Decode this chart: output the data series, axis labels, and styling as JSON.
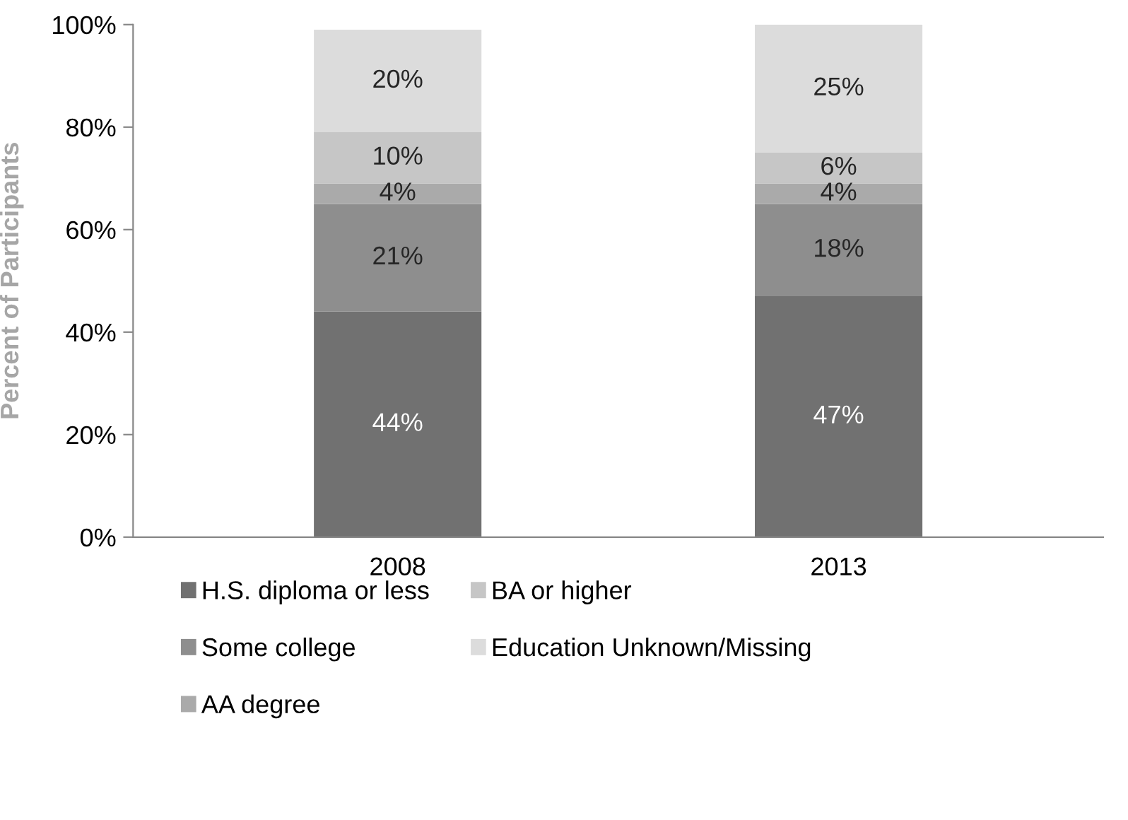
{
  "chart_data": {
    "type": "bar",
    "stacked": true,
    "ylabel": "Percent of Participants",
    "categories": [
      "2008",
      "2013"
    ],
    "series": [
      {
        "name": "H.S. diploma or less",
        "color": "#717171",
        "values": [
          44,
          47
        ]
      },
      {
        "name": "Some college",
        "color": "#8e8e8e",
        "values": [
          21,
          18
        ]
      },
      {
        "name": "AA degree",
        "color": "#aaaaaa",
        "values": [
          4,
          4
        ]
      },
      {
        "name": "BA or higher",
        "color": "#c6c6c6",
        "values": [
          10,
          6
        ]
      },
      {
        "name": "Education Unknown/Missing",
        "color": "#dcdcdc",
        "values": [
          20,
          25
        ]
      }
    ],
    "ylim": [
      0,
      100
    ],
    "yticks": [
      {
        "value": 0,
        "label": "0%"
      },
      {
        "value": 20,
        "label": "20%"
      },
      {
        "value": 40,
        "label": "40%"
      },
      {
        "value": 60,
        "label": "60%"
      },
      {
        "value": 80,
        "label": "80%"
      },
      {
        "value": 100,
        "label": "100%"
      }
    ],
    "value_labels": [
      [
        "44%",
        "47%"
      ],
      [
        "21%",
        "18%"
      ],
      [
        "4%",
        "4%"
      ],
      [
        "10%",
        "6%"
      ],
      [
        "20%",
        "25%"
      ]
    ],
    "grid": false,
    "legend": "bottom"
  }
}
